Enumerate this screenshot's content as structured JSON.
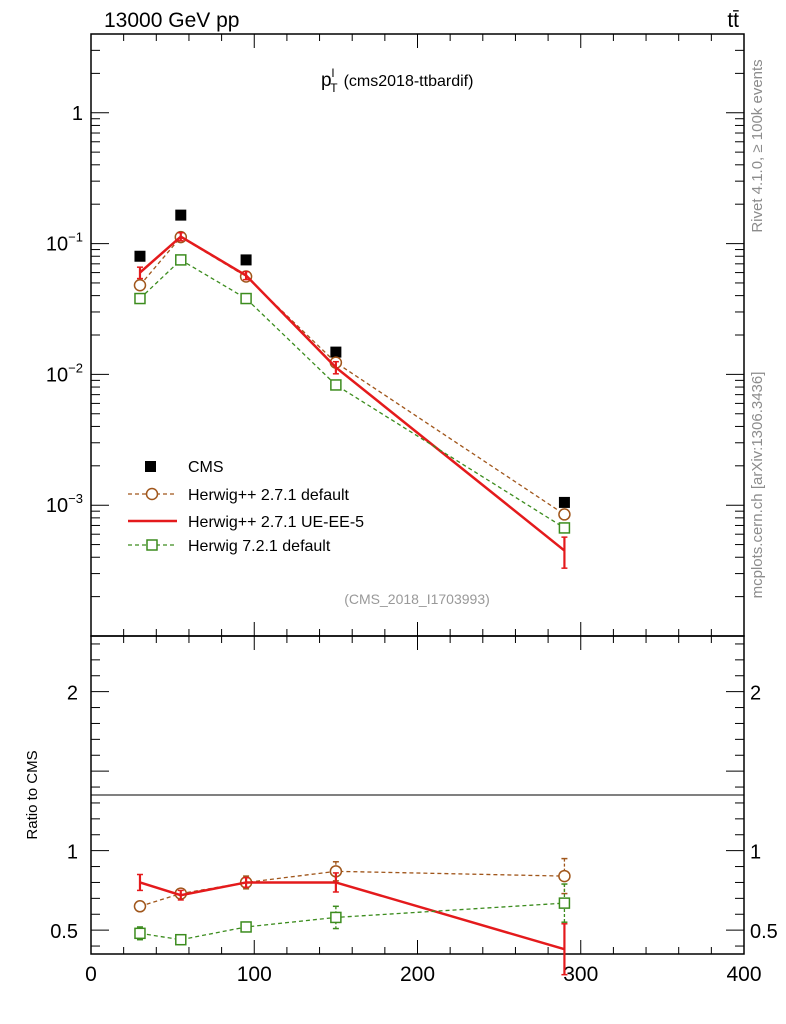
{
  "header": {
    "left": "13000 GeV pp",
    "right": "tt̄"
  },
  "side_labels": {
    "rivet": "Rivet 4.1.0, ≥ 100k events",
    "mcplots": "mcplots.cern.ch [arXiv:1306.3436]"
  },
  "chart_data": {
    "type": "line",
    "title_symbol": "p",
    "title_sup": "l",
    "title_sub": "T",
    "title_rest": "(cms2018-ttbardif)",
    "analysis_tag": "(CMS_2018_I1703993)",
    "xlim": [
      0,
      400
    ],
    "x_ticks": [
      0,
      100,
      200,
      300,
      400
    ],
    "x_tick_labels": [
      "0",
      "100",
      "200",
      "300",
      "400"
    ],
    "main": {
      "yscale": "log",
      "ylim": [
        0.0001,
        4
      ],
      "y_tick_labels": [
        {
          "value": 1,
          "text": "1"
        },
        {
          "value": 0.1,
          "base": "10",
          "exp": "−1"
        },
        {
          "value": 0.01,
          "base": "10",
          "exp": "−2"
        },
        {
          "value": 0.001,
          "base": "10",
          "exp": "−3"
        }
      ]
    },
    "ratio": {
      "ylabel": "Ratio to CMS",
      "ylim": [
        0.35,
        2.35
      ],
      "y_tick_labels": [
        {
          "value": 2,
          "text": "2"
        },
        {
          "value": 1,
          "text": "1"
        },
        {
          "value": 0.5,
          "text": "0.5"
        }
      ]
    },
    "x": [
      30,
      55,
      95,
      150,
      290
    ],
    "series": [
      {
        "name": "CMS",
        "color": "#000000",
        "style": "data",
        "values": [
          0.08,
          0.165,
          0.075,
          0.0148,
          0.00105
        ]
      },
      {
        "name": "Herwig++ 2.7.1 default",
        "color": "#a0561b",
        "style": "dashed-circle",
        "values": [
          0.048,
          0.112,
          0.056,
          0.0123,
          0.00085
        ],
        "ratio": [
          0.65,
          0.73,
          0.8,
          0.87,
          0.84
        ],
        "ratio_err": [
          0.03,
          0.03,
          0.04,
          0.06,
          0.11
        ]
      },
      {
        "name": "Herwig++ 2.7.1 UE-EE-5",
        "color": "#e41a1c",
        "style": "solid",
        "values": [
          0.06,
          0.113,
          0.057,
          0.0113,
          0.00045
        ],
        "main_err": [
          0.006,
          0.008,
          0.004,
          0.0012,
          0.00012
        ],
        "ratio": [
          0.8,
          0.72,
          0.8,
          0.8,
          0.38
        ],
        "ratio_err": [
          0.05,
          0.03,
          0.03,
          0.06,
          0.16
        ]
      },
      {
        "name": "Herwig 7.2.1 default",
        "color": "#3c8c1e",
        "style": "dashed-square",
        "values": [
          0.038,
          0.075,
          0.038,
          0.0083,
          0.00067
        ],
        "ratio": [
          0.48,
          0.44,
          0.52,
          0.58,
          0.67
        ],
        "ratio_err": [
          0.04,
          0.03,
          0.03,
          0.07,
          0.12
        ]
      }
    ]
  }
}
